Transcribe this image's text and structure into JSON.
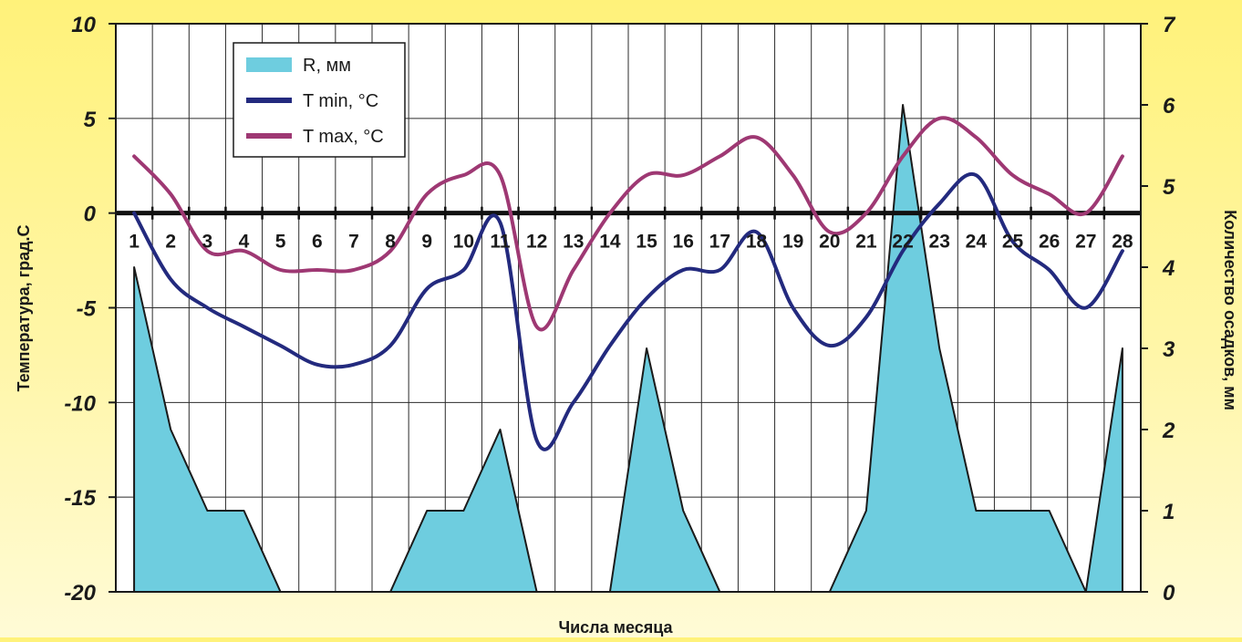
{
  "chart_data": {
    "type": "line",
    "xlabel": "Числа месяца",
    "ylabel_left": "Температура, град.С",
    "ylabel_right": "Количество осадков, мм",
    "y_left_lim": [
      -20,
      10
    ],
    "y_left_ticks": [
      10,
      5,
      0,
      -5,
      -10,
      -15,
      -20
    ],
    "y_right_lim": [
      0,
      7
    ],
    "y_right_ticks": [
      7,
      6,
      5,
      4,
      3,
      2,
      1,
      0
    ],
    "grid": true,
    "legend_position": "top-left",
    "x": [
      1,
      2,
      3,
      4,
      5,
      6,
      7,
      8,
      9,
      10,
      11,
      12,
      13,
      14,
      15,
      16,
      17,
      18,
      19,
      20,
      21,
      22,
      23,
      24,
      25,
      26,
      27,
      28
    ],
    "series": [
      {
        "name": "R, мм",
        "kind": "area",
        "axis": "right",
        "color": "#6ecddf",
        "values": [
          4,
          2,
          1,
          1,
          0,
          0,
          0,
          0,
          1,
          1,
          2,
          0,
          0,
          0,
          3,
          1,
          0,
          0,
          0,
          0,
          1,
          6,
          3,
          1,
          1,
          1,
          0,
          3
        ]
      },
      {
        "name": "T min, °C",
        "kind": "line",
        "axis": "left",
        "color": "#232a7e",
        "values": [
          0,
          -3.5,
          -5,
          -6,
          -7,
          -8,
          -8,
          -7,
          -4,
          -3,
          -0.5,
          -12,
          -10,
          -7,
          -4.5,
          -3,
          -3,
          -1,
          -5,
          -7,
          -5.5,
          -2,
          0.5,
          2,
          -1.5,
          -3,
          -5,
          -2
        ]
      },
      {
        "name": "T max, °C",
        "kind": "line",
        "axis": "left",
        "color": "#9e3873",
        "values": [
          3,
          1,
          -2,
          -2,
          -3,
          -3,
          -3,
          -2,
          1,
          2,
          2,
          -6,
          -3,
          0,
          2,
          2,
          3,
          4,
          2,
          -1,
          0,
          3,
          5,
          4,
          2,
          1,
          0,
          3
        ]
      }
    ]
  }
}
